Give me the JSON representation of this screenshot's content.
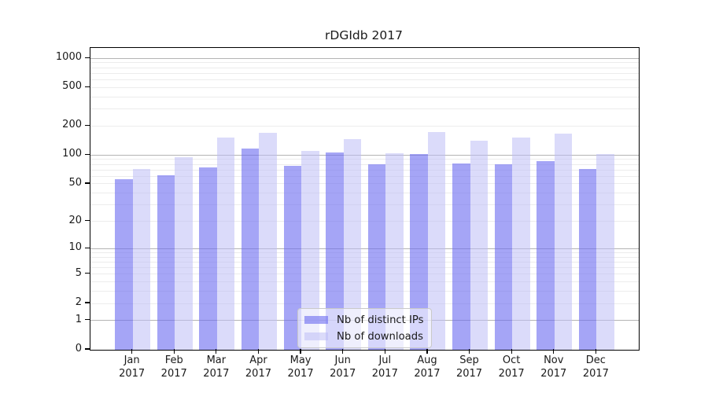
{
  "chart_data": {
    "type": "bar",
    "title": "rDGIdb 2017",
    "yscale": "log1p",
    "ylim": [
      0,
      1280
    ],
    "yticks": [
      0,
      1,
      2,
      5,
      10,
      20,
      50,
      100,
      200,
      500,
      1000
    ],
    "grid": {
      "major_values": [
        1,
        10,
        100,
        1000
      ],
      "minor_base": [
        2,
        3,
        4,
        5,
        6,
        7,
        8,
        9
      ],
      "major_color": "#b4b4b4",
      "minor_color": "#ececec"
    },
    "categories": [
      "Jan",
      "Feb",
      "Mar",
      "Apr",
      "May",
      "Jun",
      "Jul",
      "Aug",
      "Sep",
      "Oct",
      "Nov",
      "Dec"
    ],
    "x_year": "2017",
    "series": [
      {
        "name": "Nb of distinct IPs",
        "color": "rgba(110,110,240,0.62)",
        "values": [
          56,
          62,
          74,
          117,
          77,
          106,
          80,
          102,
          82,
          81,
          87,
          72
        ]
      },
      {
        "name": "Nb of downloads",
        "color": "rgba(190,190,246,0.55)",
        "values": [
          71,
          95,
          152,
          170,
          110,
          146,
          105,
          172,
          140,
          151,
          168,
          102
        ]
      }
    ],
    "legend": {
      "position": "lower center",
      "items": [
        "Nb of distinct IPs",
        "Nb of downloads"
      ]
    }
  }
}
